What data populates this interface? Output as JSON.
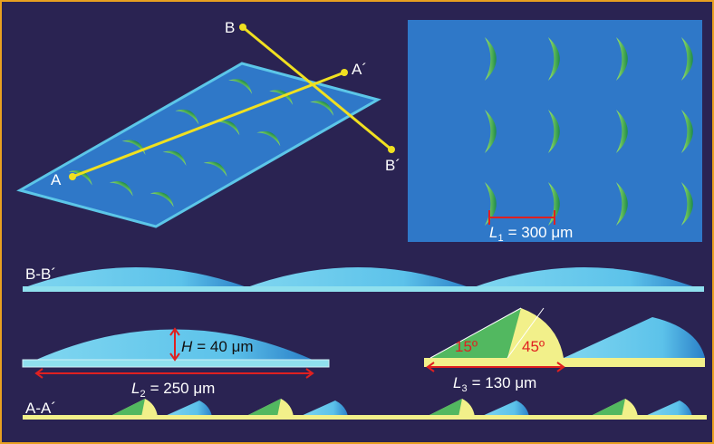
{
  "labels": {
    "b": "B",
    "b_prime": "B´",
    "a": "A",
    "a_prime": "A´"
  },
  "top_view": {
    "dimension": {
      "symbol": "L",
      "subscript": "1",
      "text": "= 300 μm"
    }
  },
  "sections": {
    "bb": "B-B´",
    "aa": "A-A´"
  },
  "profile": {
    "height": {
      "symbol": "H",
      "text": "= 40 μm"
    },
    "length": {
      "symbol": "L",
      "subscript": "2",
      "text": "= 250 μm"
    }
  },
  "detail": {
    "angle_left": "15º",
    "angle_right": "45º",
    "length": {
      "symbol": "L",
      "subscript": "3",
      "text": "= 130 μm"
    }
  }
}
